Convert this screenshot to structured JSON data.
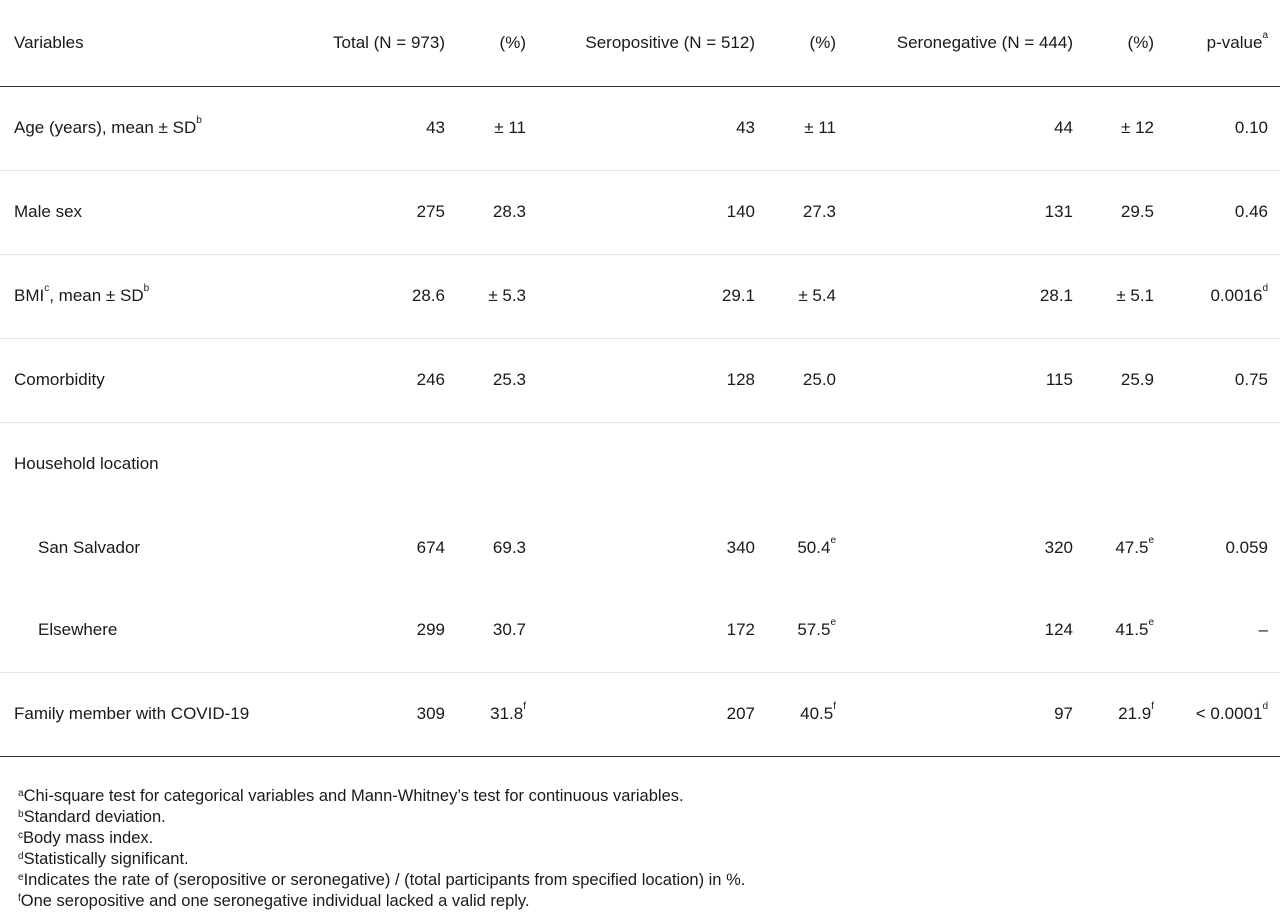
{
  "header": {
    "variables": "Variables",
    "total": "Total (N = 973)",
    "pct1": "(%)",
    "seropositive": "Seropositive (N = 512)",
    "pct2": "(%)",
    "seronegative": "Seronegative (N = 444)",
    "pct3": "(%)",
    "pvalue": "p-value",
    "pvalue_sup": "a"
  },
  "rows": [
    {
      "label": "Age (years), mean ± SD",
      "label_sup": "b",
      "total": "43",
      "total_pct": "± 11",
      "total_pct_sup": "",
      "pos": "43",
      "pos_pct": "± 11",
      "pos_pct_sup": "",
      "neg": "44",
      "neg_pct": "± 12",
      "neg_pct_sup": "",
      "p": "0.10",
      "p_sup": ""
    },
    {
      "label": "Male sex",
      "label_sup": "",
      "total": "275",
      "total_pct": "28.3",
      "total_pct_sup": "",
      "pos": "140",
      "pos_pct": "27.3",
      "pos_pct_sup": "",
      "neg": "131",
      "neg_pct": "29.5",
      "neg_pct_sup": "",
      "p": "0.46",
      "p_sup": ""
    },
    {
      "label_pre": "BMI",
      "label_pre_sup": "c",
      "label": ", mean ± SD",
      "label_sup": "b",
      "total": "28.6",
      "total_pct": "± 5.3",
      "total_pct_sup": "",
      "pos": "29.1",
      "pos_pct": "± 5.4",
      "pos_pct_sup": "",
      "neg": "28.1",
      "neg_pct": "± 5.1",
      "neg_pct_sup": "",
      "p": "0.0016",
      "p_sup": "d"
    },
    {
      "label": "Comorbidity",
      "label_sup": "",
      "total": "246",
      "total_pct": "25.3",
      "total_pct_sup": "",
      "pos": "128",
      "pos_pct": "25.0",
      "pos_pct_sup": "",
      "neg": "115",
      "neg_pct": "25.9",
      "neg_pct_sup": "",
      "p": "0.75",
      "p_sup": ""
    },
    {
      "label": "Household location"
    },
    {
      "label": "San Salvador",
      "label_sup": "",
      "total": "674",
      "total_pct": "69.3",
      "total_pct_sup": "",
      "pos": "340",
      "pos_pct": "50.4",
      "pos_pct_sup": "e",
      "neg": "320",
      "neg_pct": "47.5",
      "neg_pct_sup": "e",
      "p": "0.059",
      "p_sup": ""
    },
    {
      "label": "Elsewhere",
      "label_sup": "",
      "total": "299",
      "total_pct": "30.7",
      "total_pct_sup": "",
      "pos": "172",
      "pos_pct": "57.5",
      "pos_pct_sup": "e",
      "neg": "124",
      "neg_pct": "41.5",
      "neg_pct_sup": "e",
      "p": "–",
      "p_sup": ""
    },
    {
      "label": "Family member with COVID-19",
      "label_sup": "",
      "total": "309",
      "total_pct": "31.8",
      "total_pct_sup": "f",
      "pos": "207",
      "pos_pct": "40.5",
      "pos_pct_sup": "f",
      "neg": "97",
      "neg_pct": "21.9",
      "neg_pct_sup": "f",
      "p": "< 0.0001",
      "p_sup": "d"
    }
  ],
  "footnotes": [
    {
      "mark": "a",
      "text": "Chi-square test for categorical variables and Mann-Whitney’s test for continuous variables."
    },
    {
      "mark": "b",
      "text": "Standard deviation."
    },
    {
      "mark": "c",
      "text": "Body mass index."
    },
    {
      "mark": "d",
      "text": "Statistically significant."
    },
    {
      "mark": "e",
      "text": "Indicates the rate of (seropositive or seronegative) / (total participants from specified location) in %."
    },
    {
      "mark": "f",
      "text": "One seropositive and one seronegative individual lacked a valid reply."
    }
  ]
}
